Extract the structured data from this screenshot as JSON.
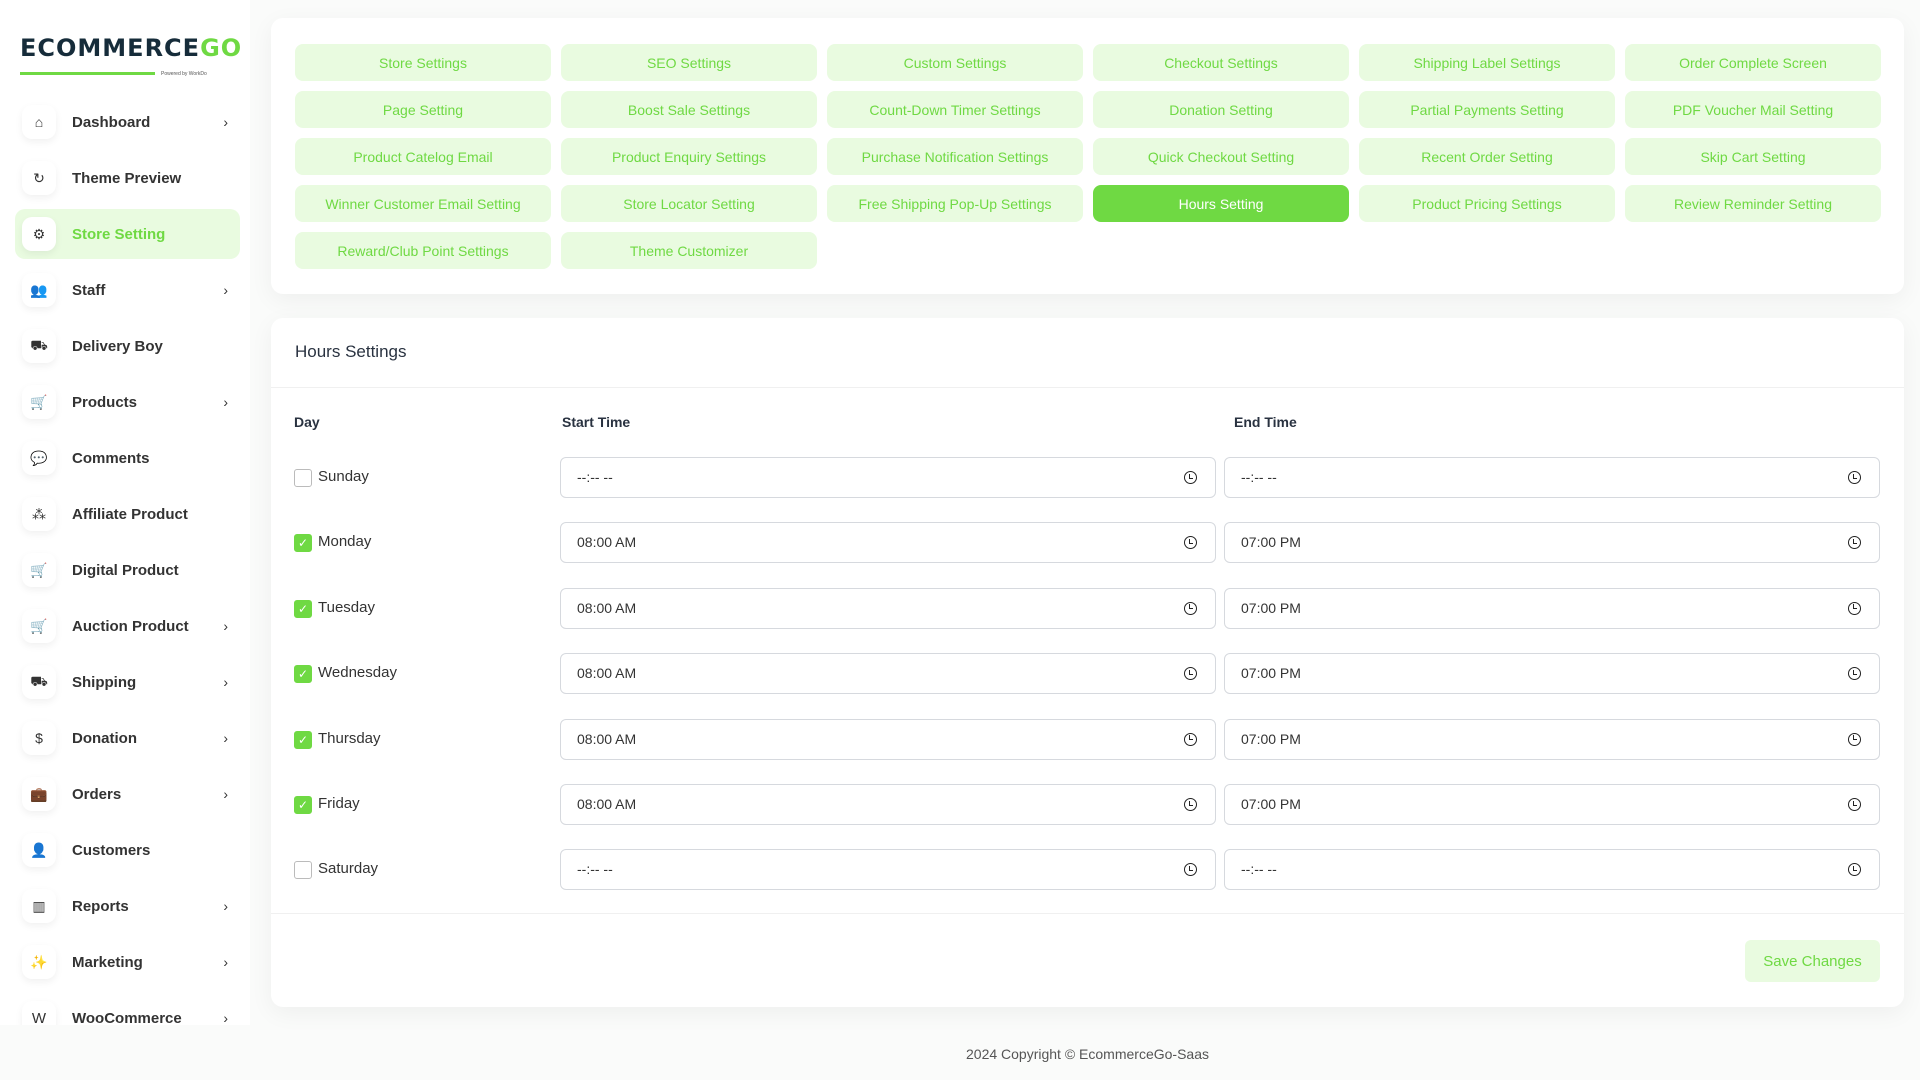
{
  "brand": {
    "name_dark": "ECOMMERCE",
    "name_accent": "GO",
    "powered": "Powered by WorkDo",
    "accent": "#6fd943"
  },
  "sidebar": {
    "items": [
      {
        "label": "Dashboard",
        "icon": "home-icon",
        "chevron": true
      },
      {
        "label": "Theme Preview",
        "icon": "refresh-icon",
        "chevron": false
      },
      {
        "label": "Store Setting",
        "icon": "gear-icon",
        "chevron": false,
        "active": true
      },
      {
        "label": "Staff",
        "icon": "users-icon",
        "chevron": true
      },
      {
        "label": "Delivery Boy",
        "icon": "truck-icon",
        "chevron": false
      },
      {
        "label": "Products",
        "icon": "cart-icon",
        "chevron": true
      },
      {
        "label": "Comments",
        "icon": "comment-icon",
        "chevron": false
      },
      {
        "label": "Affiliate Product",
        "icon": "affiliate-icon",
        "chevron": false
      },
      {
        "label": "Digital Product",
        "icon": "cart-plus-icon",
        "chevron": false
      },
      {
        "label": "Auction Product",
        "icon": "cart-discount-icon",
        "chevron": true
      },
      {
        "label": "Shipping",
        "icon": "truck-icon",
        "chevron": true
      },
      {
        "label": "Donation",
        "icon": "dollar-circle-icon",
        "chevron": true
      },
      {
        "label": "Orders",
        "icon": "briefcase-icon",
        "chevron": true
      },
      {
        "label": "Customers",
        "icon": "user-icon",
        "chevron": false
      },
      {
        "label": "Reports",
        "icon": "bar-chart-icon",
        "chevron": true
      },
      {
        "label": "Marketing",
        "icon": "confetti-icon",
        "chevron": true
      },
      {
        "label": "WooCommerce",
        "icon": "woocommerce-icon",
        "chevron": true
      }
    ]
  },
  "tabs": [
    "Store Settings",
    "SEO Settings",
    "Custom Settings",
    "Checkout Settings",
    "Shipping Label Settings",
    "Order Complete Screen",
    "Page Setting",
    "Boost Sale Settings",
    "Count-Down Timer Settings",
    "Donation Setting",
    "Partial Payments Setting",
    "PDF Voucher Mail Setting",
    "Product Catelog Email",
    "Product Enquiry Settings",
    "Purchase Notification Settings",
    "Quick Checkout Setting",
    "Recent Order Setting",
    "Skip Cart Setting",
    "Winner Customer Email Setting",
    "Store Locator Setting",
    "Free Shipping Pop-Up Settings",
    "Hours Setting",
    "Product Pricing Settings",
    "Review Reminder Setting",
    "Reward/Club Point Settings",
    "Theme Customizer"
  ],
  "active_tab": "Hours Setting",
  "hours": {
    "title": "Hours Settings",
    "col_day": "Day",
    "col_start": "Start Time",
    "col_end": "End Time",
    "days": [
      {
        "day": "Sunday",
        "checked": false,
        "start": "--:-- --",
        "end": "--:-- --"
      },
      {
        "day": "Monday",
        "checked": true,
        "start": "08:00 AM",
        "end": "07:00 PM"
      },
      {
        "day": "Tuesday",
        "checked": true,
        "start": "08:00 AM",
        "end": "07:00 PM"
      },
      {
        "day": "Wednesday",
        "checked": true,
        "start": "08:00 AM",
        "end": "07:00 PM"
      },
      {
        "day": "Thursday",
        "checked": true,
        "start": "08:00 AM",
        "end": "07:00 PM"
      },
      {
        "day": "Friday",
        "checked": true,
        "start": "08:00 AM",
        "end": "07:00 PM"
      },
      {
        "day": "Saturday",
        "checked": false,
        "start": "--:-- --",
        "end": "--:-- --"
      }
    ],
    "save_label": "Save Changes"
  },
  "footer": "2024 Copyright © EcommerceGo-Saas"
}
